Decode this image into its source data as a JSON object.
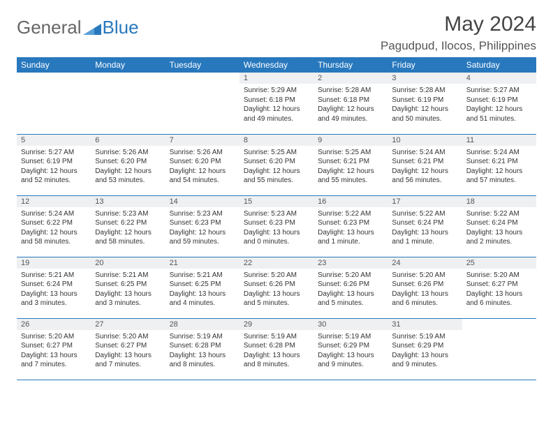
{
  "brand": {
    "general": "General",
    "blue": "Blue"
  },
  "header": {
    "month": "May 2024",
    "location": "Pagudpud, Ilocos, Philippines"
  },
  "colors": {
    "accent": "#2878bd",
    "header_bg": "#eef0f2",
    "text": "#333333"
  },
  "days": [
    "Sunday",
    "Monday",
    "Tuesday",
    "Wednesday",
    "Thursday",
    "Friday",
    "Saturday"
  ],
  "grid": [
    [
      {
        "n": "",
        "sr": "",
        "ss": "",
        "dl": ""
      },
      {
        "n": "",
        "sr": "",
        "ss": "",
        "dl": ""
      },
      {
        "n": "",
        "sr": "",
        "ss": "",
        "dl": ""
      },
      {
        "n": "1",
        "sr": "Sunrise: 5:29 AM",
        "ss": "Sunset: 6:18 PM",
        "dl": "Daylight: 12 hours and 49 minutes."
      },
      {
        "n": "2",
        "sr": "Sunrise: 5:28 AM",
        "ss": "Sunset: 6:18 PM",
        "dl": "Daylight: 12 hours and 49 minutes."
      },
      {
        "n": "3",
        "sr": "Sunrise: 5:28 AM",
        "ss": "Sunset: 6:19 PM",
        "dl": "Daylight: 12 hours and 50 minutes."
      },
      {
        "n": "4",
        "sr": "Sunrise: 5:27 AM",
        "ss": "Sunset: 6:19 PM",
        "dl": "Daylight: 12 hours and 51 minutes."
      }
    ],
    [
      {
        "n": "5",
        "sr": "Sunrise: 5:27 AM",
        "ss": "Sunset: 6:19 PM",
        "dl": "Daylight: 12 hours and 52 minutes."
      },
      {
        "n": "6",
        "sr": "Sunrise: 5:26 AM",
        "ss": "Sunset: 6:20 PM",
        "dl": "Daylight: 12 hours and 53 minutes."
      },
      {
        "n": "7",
        "sr": "Sunrise: 5:26 AM",
        "ss": "Sunset: 6:20 PM",
        "dl": "Daylight: 12 hours and 54 minutes."
      },
      {
        "n": "8",
        "sr": "Sunrise: 5:25 AM",
        "ss": "Sunset: 6:20 PM",
        "dl": "Daylight: 12 hours and 55 minutes."
      },
      {
        "n": "9",
        "sr": "Sunrise: 5:25 AM",
        "ss": "Sunset: 6:21 PM",
        "dl": "Daylight: 12 hours and 55 minutes."
      },
      {
        "n": "10",
        "sr": "Sunrise: 5:24 AM",
        "ss": "Sunset: 6:21 PM",
        "dl": "Daylight: 12 hours and 56 minutes."
      },
      {
        "n": "11",
        "sr": "Sunrise: 5:24 AM",
        "ss": "Sunset: 6:21 PM",
        "dl": "Daylight: 12 hours and 57 minutes."
      }
    ],
    [
      {
        "n": "12",
        "sr": "Sunrise: 5:24 AM",
        "ss": "Sunset: 6:22 PM",
        "dl": "Daylight: 12 hours and 58 minutes."
      },
      {
        "n": "13",
        "sr": "Sunrise: 5:23 AM",
        "ss": "Sunset: 6:22 PM",
        "dl": "Daylight: 12 hours and 58 minutes."
      },
      {
        "n": "14",
        "sr": "Sunrise: 5:23 AM",
        "ss": "Sunset: 6:23 PM",
        "dl": "Daylight: 12 hours and 59 minutes."
      },
      {
        "n": "15",
        "sr": "Sunrise: 5:23 AM",
        "ss": "Sunset: 6:23 PM",
        "dl": "Daylight: 13 hours and 0 minutes."
      },
      {
        "n": "16",
        "sr": "Sunrise: 5:22 AM",
        "ss": "Sunset: 6:23 PM",
        "dl": "Daylight: 13 hours and 1 minute."
      },
      {
        "n": "17",
        "sr": "Sunrise: 5:22 AM",
        "ss": "Sunset: 6:24 PM",
        "dl": "Daylight: 13 hours and 1 minute."
      },
      {
        "n": "18",
        "sr": "Sunrise: 5:22 AM",
        "ss": "Sunset: 6:24 PM",
        "dl": "Daylight: 13 hours and 2 minutes."
      }
    ],
    [
      {
        "n": "19",
        "sr": "Sunrise: 5:21 AM",
        "ss": "Sunset: 6:24 PM",
        "dl": "Daylight: 13 hours and 3 minutes."
      },
      {
        "n": "20",
        "sr": "Sunrise: 5:21 AM",
        "ss": "Sunset: 6:25 PM",
        "dl": "Daylight: 13 hours and 3 minutes."
      },
      {
        "n": "21",
        "sr": "Sunrise: 5:21 AM",
        "ss": "Sunset: 6:25 PM",
        "dl": "Daylight: 13 hours and 4 minutes."
      },
      {
        "n": "22",
        "sr": "Sunrise: 5:20 AM",
        "ss": "Sunset: 6:26 PM",
        "dl": "Daylight: 13 hours and 5 minutes."
      },
      {
        "n": "23",
        "sr": "Sunrise: 5:20 AM",
        "ss": "Sunset: 6:26 PM",
        "dl": "Daylight: 13 hours and 5 minutes."
      },
      {
        "n": "24",
        "sr": "Sunrise: 5:20 AM",
        "ss": "Sunset: 6:26 PM",
        "dl": "Daylight: 13 hours and 6 minutes."
      },
      {
        "n": "25",
        "sr": "Sunrise: 5:20 AM",
        "ss": "Sunset: 6:27 PM",
        "dl": "Daylight: 13 hours and 6 minutes."
      }
    ],
    [
      {
        "n": "26",
        "sr": "Sunrise: 5:20 AM",
        "ss": "Sunset: 6:27 PM",
        "dl": "Daylight: 13 hours and 7 minutes."
      },
      {
        "n": "27",
        "sr": "Sunrise: 5:20 AM",
        "ss": "Sunset: 6:27 PM",
        "dl": "Daylight: 13 hours and 7 minutes."
      },
      {
        "n": "28",
        "sr": "Sunrise: 5:19 AM",
        "ss": "Sunset: 6:28 PM",
        "dl": "Daylight: 13 hours and 8 minutes."
      },
      {
        "n": "29",
        "sr": "Sunrise: 5:19 AM",
        "ss": "Sunset: 6:28 PM",
        "dl": "Daylight: 13 hours and 8 minutes."
      },
      {
        "n": "30",
        "sr": "Sunrise: 5:19 AM",
        "ss": "Sunset: 6:29 PM",
        "dl": "Daylight: 13 hours and 9 minutes."
      },
      {
        "n": "31",
        "sr": "Sunrise: 5:19 AM",
        "ss": "Sunset: 6:29 PM",
        "dl": "Daylight: 13 hours and 9 minutes."
      },
      {
        "n": "",
        "sr": "",
        "ss": "",
        "dl": ""
      }
    ]
  ]
}
